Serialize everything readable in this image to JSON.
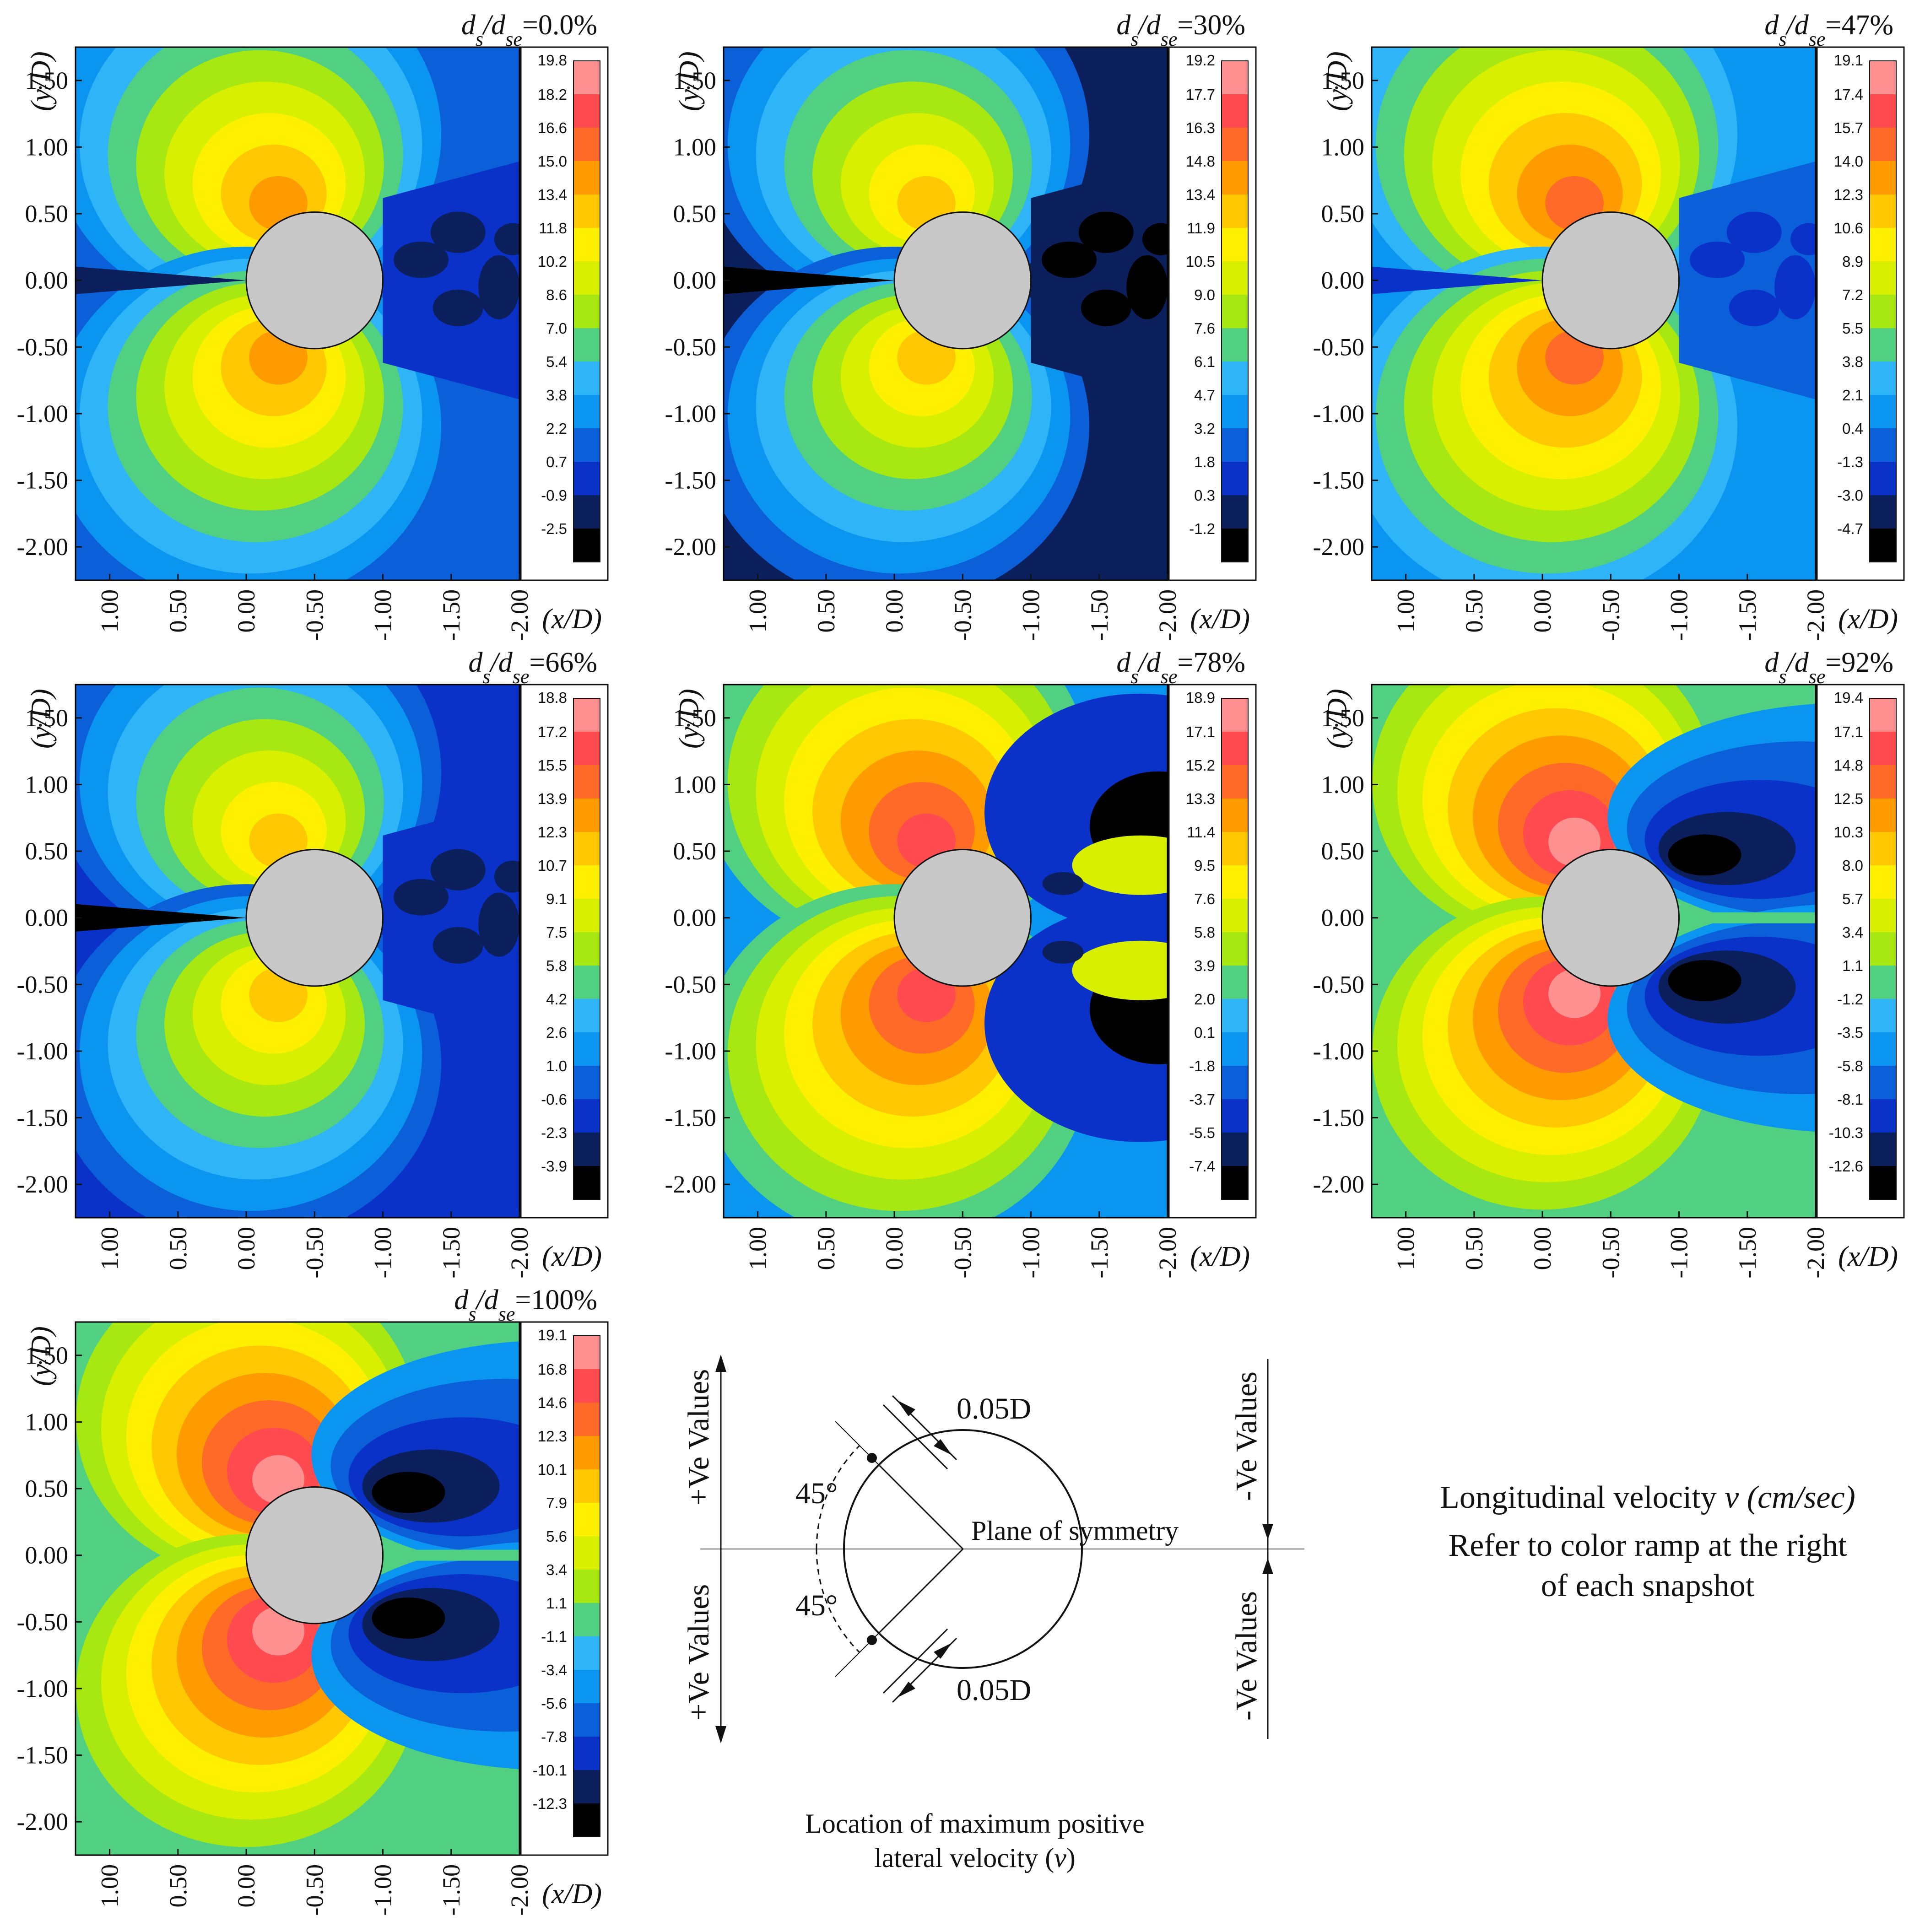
{
  "figure": {
    "x_axis_label": "(x/D)",
    "y_axis_label": "(y/D)",
    "x_ticks": [
      "1.00",
      "0.50",
      "0.00",
      "-0.50",
      "-1.00",
      "-1.50",
      "-2.00"
    ],
    "y_ticks": [
      "1.50",
      "1.00",
      "0.50",
      "0.00",
      "-0.50",
      "-1.00",
      "-1.50",
      "-2.00"
    ],
    "title_prefix": "d",
    "title_sub1": "s",
    "title_slash": "/d",
    "title_sub2": "se"
  },
  "colors": {
    "ramp": [
      "#000000",
      "#0a1f5c",
      "#0a32c8",
      "#0b5fd8",
      "#0a96f0",
      "#2fb4f8",
      "#50d080",
      "#a8e812",
      "#d8f000",
      "#fff000",
      "#ffc800",
      "#ff9a00",
      "#ff6a28",
      "#ff4a50",
      "#ff9090"
    ],
    "cylinder": "#c8c8c8",
    "panel_border": "#000000"
  },
  "chart_data": [
    {
      "type": "heatmap",
      "title_value": "=0.0%",
      "variable": "longitudinal velocity v (cm/sec)",
      "colorbar": [
        "19.8",
        "18.2",
        "16.6",
        "15.0",
        "13.4",
        "11.8",
        "10.2",
        "8.6",
        "7.0",
        "5.4",
        "3.8",
        "2.2",
        "0.7",
        "-0.9",
        "-2.5"
      ],
      "background_level": 3,
      "near_field_level": 4,
      "wake_level": 1,
      "pattern": "stagnation-lobes"
    },
    {
      "type": "heatmap",
      "title_value": "=30%",
      "variable": "longitudinal velocity v (cm/sec)",
      "colorbar": [
        "19.2",
        "17.7",
        "16.3",
        "14.8",
        "13.4",
        "11.9",
        "10.5",
        "9.0",
        "7.6",
        "6.1",
        "4.7",
        "3.2",
        "1.8",
        "0.3",
        "-1.2"
      ],
      "background_level": 1,
      "near_field_level": 3,
      "wake_level": 0,
      "pattern": "stagnation-lobes"
    },
    {
      "type": "heatmap",
      "title_value": "=47%",
      "variable": "longitudinal velocity v (cm/sec)",
      "colorbar": [
        "19.1",
        "17.4",
        "15.7",
        "14.0",
        "12.3",
        "10.6",
        "8.9",
        "7.2",
        "5.5",
        "3.8",
        "2.1",
        "0.4",
        "-1.3",
        "-3.0",
        "-4.7"
      ],
      "background_level": 4,
      "near_field_level": 5,
      "wake_level": 2,
      "pattern": "stagnation-lobes"
    },
    {
      "type": "heatmap",
      "title_value": "=66%",
      "variable": "longitudinal velocity v (cm/sec)",
      "colorbar": [
        "18.8",
        "17.2",
        "15.5",
        "13.9",
        "12.3",
        "10.7",
        "9.1",
        "7.5",
        "5.8",
        "4.2",
        "2.6",
        "1.0",
        "-0.6",
        "-2.3",
        "-3.9"
      ],
      "background_level": 2,
      "near_field_level": 3,
      "wake_level": 1,
      "pattern": "stagnation-lobes"
    },
    {
      "type": "heatmap",
      "title_value": "=78%",
      "variable": "longitudinal velocity v (cm/sec)",
      "colorbar": [
        "18.9",
        "17.1",
        "15.2",
        "13.3",
        "11.4",
        "9.5",
        "7.6",
        "5.8",
        "3.9",
        "2.0",
        "0.1",
        "-1.8",
        "-3.7",
        "-5.5",
        "-7.4"
      ],
      "background_level": 4,
      "near_field_level": 6,
      "wake_level": 0,
      "pattern": "wake-pockets"
    },
    {
      "type": "heatmap",
      "title_value": "=92%",
      "variable": "longitudinal velocity v (cm/sec)",
      "colorbar": [
        "19.4",
        "17.1",
        "14.8",
        "12.5",
        "10.3",
        "8.0",
        "5.7",
        "3.4",
        "1.1",
        "-1.2",
        "-3.5",
        "-5.8",
        "-8.1",
        "-10.3",
        "-12.6"
      ],
      "background_level": 6,
      "near_field_level": 7,
      "wake_level": 4,
      "pattern": "downstream-lobes"
    },
    {
      "type": "heatmap",
      "title_value": "=100%",
      "variable": "longitudinal velocity v (cm/sec)",
      "colorbar": [
        "19.1",
        "16.8",
        "14.6",
        "12.3",
        "10.1",
        "7.9",
        "5.6",
        "3.4",
        "1.1",
        "-1.1",
        "-3.4",
        "-5.6",
        "-7.8",
        "-10.1",
        "-12.3"
      ],
      "background_level": 6,
      "near_field_level": 7,
      "wake_level": 4,
      "pattern": "downstream-lobes"
    }
  ],
  "schematic": {
    "pos_values": "+Ve Values",
    "neg_values": "-Ve Values",
    "angle": "45°",
    "offset": "0.05D",
    "plane_label": "Plane of symmetry",
    "caption_line1": "Location of maximum positive",
    "caption_line2": "lateral velocity (",
    "caption_var": "v",
    "caption_close": ")"
  },
  "legend_note": {
    "line1_text": "Longitudinal velocity ",
    "line1_var": "v",
    "line1_unit": " (cm/sec)",
    "line2": "Refer to color ramp at the right",
    "line3": "of each snapshot"
  }
}
